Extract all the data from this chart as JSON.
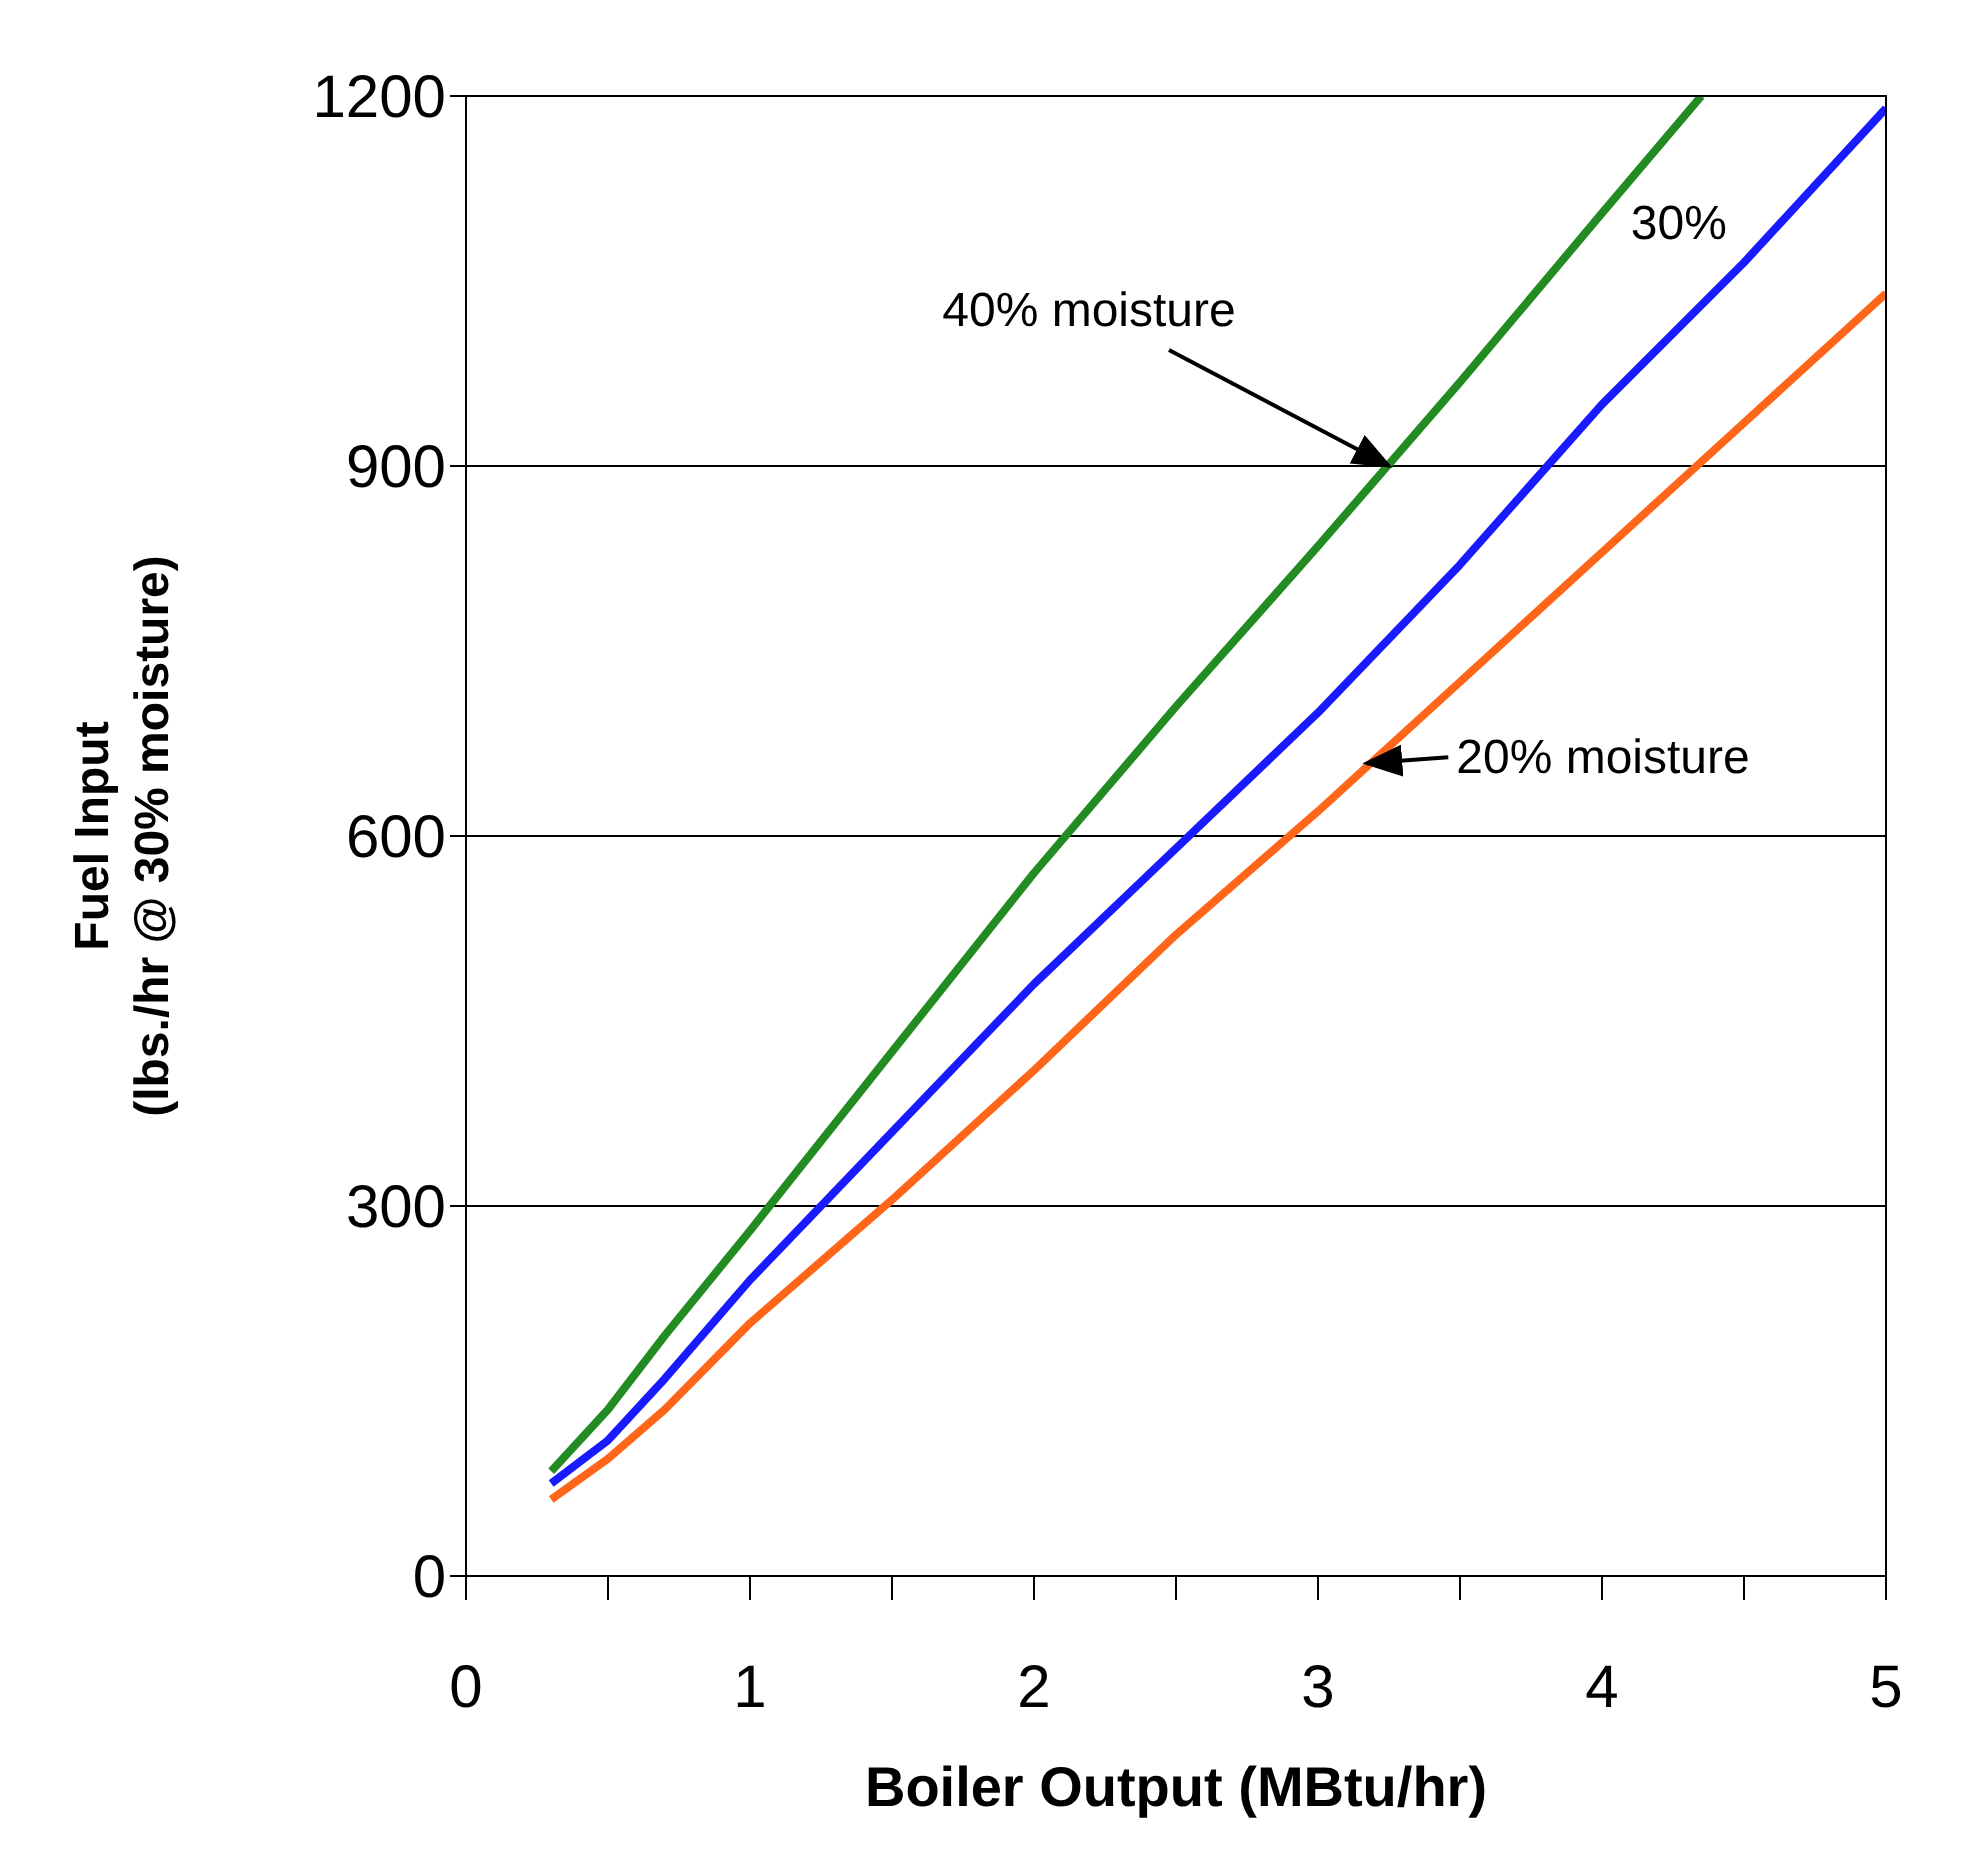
{
  "chart_data": {
    "type": "line",
    "xlabel": "Boiler Output (MBtu/hr)",
    "ylabel": "Fuel Input\n(lbs./hr @ 30% moisture)",
    "xlim": [
      0,
      5
    ],
    "ylim": [
      0,
      1200
    ],
    "xticks": [
      0,
      {
        "value": 0.5,
        "label": null
      },
      1,
      {
        "value": 1.5,
        "label": null
      },
      2,
      {
        "value": 2.5,
        "label": null
      },
      3,
      {
        "value": 3.5,
        "label": null
      },
      4,
      {
        "value": 4.5,
        "label": null
      },
      5
    ],
    "yticks": [
      0,
      300,
      600,
      900,
      1200
    ],
    "grid": "y",
    "legend": false,
    "marker": "none",
    "line_style": "solid",
    "series": [
      {
        "color": "#228b22",
        "x": [
          0.3,
          0.5,
          0.7,
          1,
          1.5,
          2,
          2.5,
          3,
          3.5,
          4,
          4.35
        ],
        "values": [
          85,
          135,
          195,
          280,
          425,
          570,
          705,
          835,
          968,
          1105,
          1200
        ]
      },
      {
        "color": "#1a1aff",
        "x": [
          0.3,
          0.5,
          0.7,
          1,
          1.5,
          2,
          2.5,
          3,
          3.5,
          4,
          4.5,
          5
        ],
        "values": [
          75,
          110,
          160,
          240,
          360,
          480,
          590,
          700,
          820,
          950,
          1065,
          1190
        ]
      },
      {
        "color": "#ff6619",
        "x": [
          0.3,
          0.5,
          0.7,
          1,
          1.5,
          2,
          2.5,
          3,
          3.5,
          4,
          4.5,
          5
        ],
        "values": [
          62,
          95,
          135,
          205,
          305,
          410,
          520,
          620,
          725,
          830,
          935,
          1040
        ]
      }
    ],
    "annotations": [
      {
        "text": "40% moisture",
        "x": 3.25,
        "y": 900
      },
      {
        "text": "30%",
        "x": 4.2,
        "y": 995
      },
      {
        "text": "20% moisture",
        "x": 3.17,
        "y": 659
      }
    ]
  }
}
